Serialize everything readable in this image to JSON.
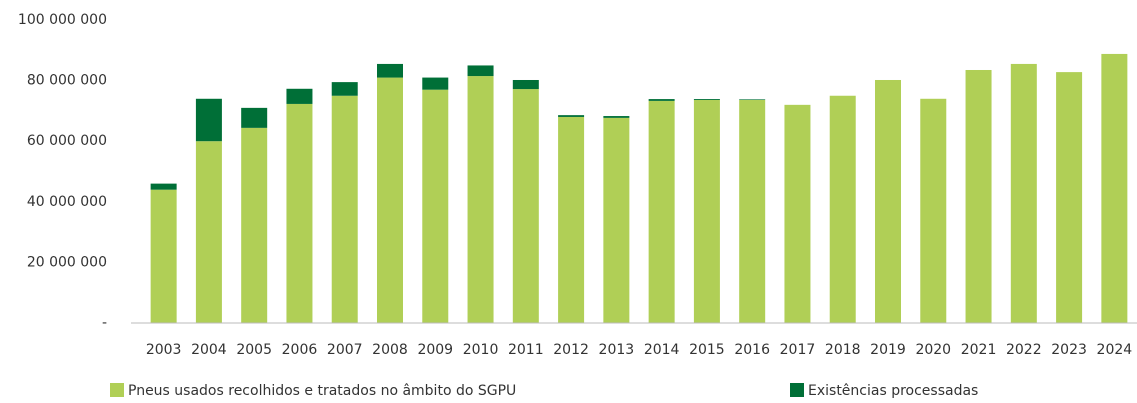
{
  "chart_data": {
    "type": "stacked_bar",
    "categories": [
      "2003",
      "2004",
      "2005",
      "2006",
      "2007",
      "2008",
      "2009",
      "2010",
      "2011",
      "2012",
      "2013",
      "2014",
      "2015",
      "2016",
      "2017",
      "2018",
      "2019",
      "2020",
      "2021",
      "2022",
      "2023",
      "2024"
    ],
    "series": [
      {
        "name": "Pneus usados recolhidos e tratados no âmbito do SGPU",
        "color": "#b0cf56",
        "values": [
          44000000,
          60000000,
          64400000,
          72300000,
          75000000,
          81000000,
          77000000,
          81500000,
          77200000,
          68000000,
          67700000,
          73300000,
          73600000,
          73600000,
          72000000,
          75000000,
          80200000,
          74000000,
          83500000,
          85500000,
          82800000,
          88800000
        ]
      },
      {
        "name": "Existências processadas",
        "color": "#006f37",
        "values": [
          2000000,
          14000000,
          6600000,
          5000000,
          4500000,
          4500000,
          4000000,
          3500000,
          3000000,
          600000,
          600000,
          600000,
          300000,
          200000,
          0,
          0,
          0,
          0,
          0,
          0,
          0,
          0
        ]
      }
    ],
    "ylim": [
      0,
      100000000
    ],
    "yticks": [
      {
        "value": 0,
        "label": "-"
      },
      {
        "value": 20000000,
        "label": "20 000 000"
      },
      {
        "value": 40000000,
        "label": "40 000 000"
      },
      {
        "value": 60000000,
        "label": "60 000 000"
      },
      {
        "value": 80000000,
        "label": "80 000 000"
      },
      {
        "value": 100000000,
        "label": "100 000 000"
      }
    ],
    "grid": false
  }
}
